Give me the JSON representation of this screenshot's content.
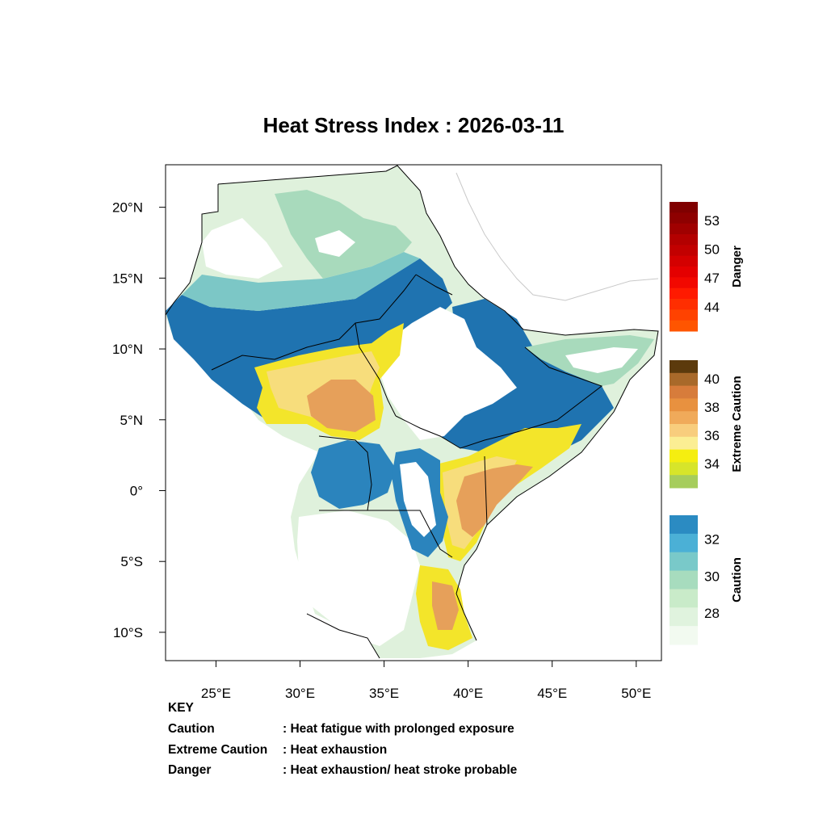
{
  "title": "Heat Stress Index : 2026-03-11",
  "map": {
    "lon_range": [
      22,
      51.5
    ],
    "lat_range": [
      -12,
      23
    ],
    "x_ticks": [
      {
        "value": 25,
        "label": "25°E"
      },
      {
        "value": 30,
        "label": "30°E"
      },
      {
        "value": 35,
        "label": "35°E"
      },
      {
        "value": 40,
        "label": "40°E"
      },
      {
        "value": 45,
        "label": "45°E"
      },
      {
        "value": 50,
        "label": "50°E"
      }
    ],
    "y_ticks": [
      {
        "value": 20,
        "label": "20°N"
      },
      {
        "value": 15,
        "label": "15°N"
      },
      {
        "value": 10,
        "label": "10°N"
      },
      {
        "value": 5,
        "label": "5°N"
      },
      {
        "value": 0,
        "label": "0°"
      },
      {
        "value": -5,
        "label": "5°S"
      },
      {
        "value": -10,
        "label": "10°S"
      }
    ],
    "colors": {
      "no_data": "#ffffff",
      "caution_light": "#dff1dc",
      "caution_mid": "#a8dabc",
      "caution_teal": "#6fc3c8",
      "caution_blue": "#2b84bd",
      "caution_dark": "#1b6aa8",
      "extreme_yellow": "#f6e81a",
      "extreme_light": "#f7dd7c",
      "extreme_orange": "#e8a35a",
      "extreme_dark": "#d97c3c",
      "border": "#000000",
      "coast_faint": "#c9c9c9"
    }
  },
  "legends": [
    {
      "title": "Danger",
      "labels": [
        "53",
        "50",
        "47",
        "44"
      ],
      "colors": [
        "#800000",
        "#8e0000",
        "#a00000",
        "#b30000",
        "#c20000",
        "#d40000",
        "#e40000",
        "#f20800",
        "#ff1a00",
        "#ff2e00",
        "#ff4200",
        "#ff5500"
      ]
    },
    {
      "title": "Extreme Caution",
      "labels": [
        "40",
        "38",
        "36",
        "34"
      ],
      "colors": [
        "#5c3a0c",
        "#a8692a",
        "#d77c3b",
        "#e8913f",
        "#f0aa5a",
        "#f8cd7d",
        "#fbee93",
        "#f5ee10",
        "#d7e52a",
        "#a6cd5c"
      ]
    },
    {
      "title": "Caution",
      "labels": [
        "32",
        "30",
        "28"
      ],
      "colors": [
        "#2b8bc2",
        "#4bb0d6",
        "#79c9c9",
        "#a7dcbe",
        "#c9ebc9",
        "#e0f3de",
        "#f2faf0"
      ]
    }
  ],
  "key": {
    "heading": "KEY",
    "rows": [
      {
        "term": "Caution",
        "desc": ": Heat fatigue with prolonged exposure"
      },
      {
        "term": "Extreme Caution",
        "desc": " : Heat exhaustion"
      },
      {
        "term": "Danger",
        "desc": ": Heat exhaustion/ heat stroke probable"
      }
    ]
  }
}
